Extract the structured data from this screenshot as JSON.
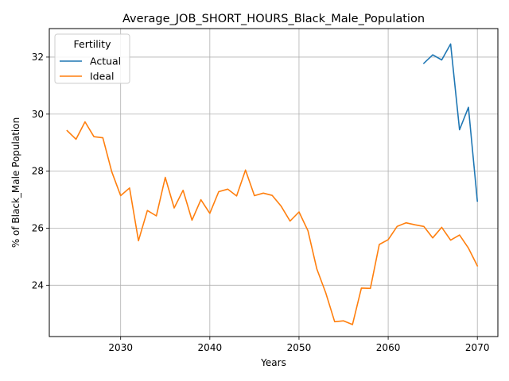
{
  "chart_data": {
    "type": "line",
    "title": "Average_JOB_SHORT_HOURS_Black_Male_Population",
    "xlabel": "Years",
    "ylabel": "% of Black_Male Population",
    "xlim": [
      2022,
      2072.3
    ],
    "ylim": [
      22.2,
      33.0
    ],
    "xticks": [
      2030,
      2040,
      2050,
      2060,
      2070
    ],
    "yticks": [
      24,
      26,
      28,
      30,
      32
    ],
    "grid": true,
    "legend": {
      "title": "Fertility",
      "position": "top-left"
    },
    "series": [
      {
        "name": "Actual",
        "color": "#1f77b4",
        "x": [
          2064,
          2065,
          2066,
          2067,
          2068,
          2069,
          2070
        ],
        "y": [
          31.78,
          32.08,
          31.9,
          32.46,
          29.45,
          30.24,
          26.95
        ]
      },
      {
        "name": "Ideal",
        "color": "#ff7f0e",
        "x": [
          2024,
          2025,
          2026,
          2027,
          2028,
          2029,
          2030,
          2031,
          2032,
          2033,
          2034,
          2035,
          2036,
          2037,
          2038,
          2039,
          2040,
          2041,
          2042,
          2043,
          2044,
          2045,
          2046,
          2047,
          2048,
          2049,
          2050,
          2051,
          2052,
          2053,
          2054,
          2055,
          2056,
          2057,
          2058,
          2059,
          2060,
          2061,
          2062,
          2063,
          2064,
          2065,
          2066,
          2067,
          2068,
          2069,
          2070
        ],
        "y": [
          29.42,
          29.12,
          29.73,
          29.21,
          29.17,
          27.98,
          27.14,
          27.41,
          25.56,
          26.62,
          26.43,
          27.78,
          26.71,
          27.33,
          26.28,
          27.0,
          26.52,
          27.28,
          27.37,
          27.13,
          28.04,
          27.14,
          27.23,
          27.15,
          26.77,
          26.25,
          26.57,
          25.91,
          24.57,
          23.73,
          22.72,
          22.75,
          22.62,
          23.9,
          23.89,
          25.43,
          25.6,
          26.06,
          26.19,
          26.12,
          26.06,
          25.66,
          26.03,
          25.58,
          25.76,
          25.3,
          24.68
        ]
      }
    ]
  }
}
